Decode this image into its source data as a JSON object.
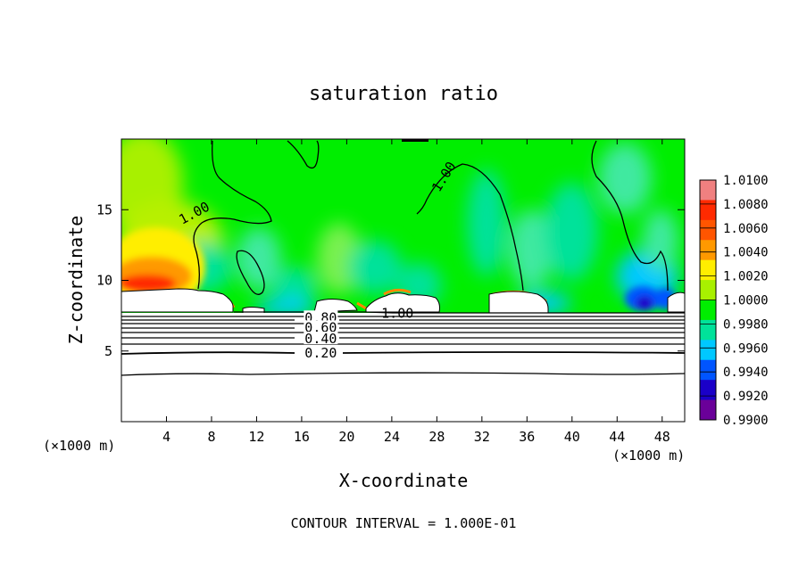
{
  "chart_data": {
    "type": "heatmap",
    "title": "saturation ratio",
    "xlabel": "X-coordinate",
    "ylabel": "Z-coordinate",
    "x_unit_left": "(×1000 m)",
    "x_unit_right": "(×1000 m)",
    "xlim": [
      0,
      50
    ],
    "ylim": [
      0,
      20
    ],
    "x_ticks": [
      4,
      8,
      12,
      16,
      20,
      24,
      28,
      32,
      36,
      40,
      44,
      48
    ],
    "y_ticks": [
      5,
      10,
      15
    ],
    "footer": "CONTOUR INTERVAL = 1.000E-01",
    "colorbar": {
      "labels": [
        "1.0100",
        "1.0080",
        "1.0060",
        "1.0040",
        "1.0020",
        "1.0000",
        "0.9980",
        "0.9960",
        "0.9940",
        "0.9920",
        "0.9900"
      ],
      "colors": [
        "#f08080",
        "#ff2a00",
        "#ff5500",
        "#ff9900",
        "#ffee00",
        "#a8f000",
        "#00ee00",
        "#00e29a",
        "#00c8ff",
        "#0055ff",
        "#1a00c8",
        "#6a0099"
      ]
    },
    "contour_labels": [
      {
        "text": "1.00",
        "x": 6.5,
        "y": 14.7,
        "rot": -28
      },
      {
        "text": "1.00",
        "x": 28.7,
        "y": 17.3,
        "rot": -58
      },
      {
        "text": "1.00",
        "x": 24.5,
        "y": 7.6,
        "rot": 0
      },
      {
        "text": "0.80",
        "x": 17.7,
        "y": 7.3,
        "rot": 0
      },
      {
        "text": "0.60",
        "x": 17.7,
        "y": 6.6,
        "rot": 0
      },
      {
        "text": "0.40",
        "x": 17.7,
        "y": 5.8,
        "rot": 0
      },
      {
        "text": "0.20",
        "x": 17.7,
        "y": 4.8,
        "rot": 0
      }
    ]
  }
}
